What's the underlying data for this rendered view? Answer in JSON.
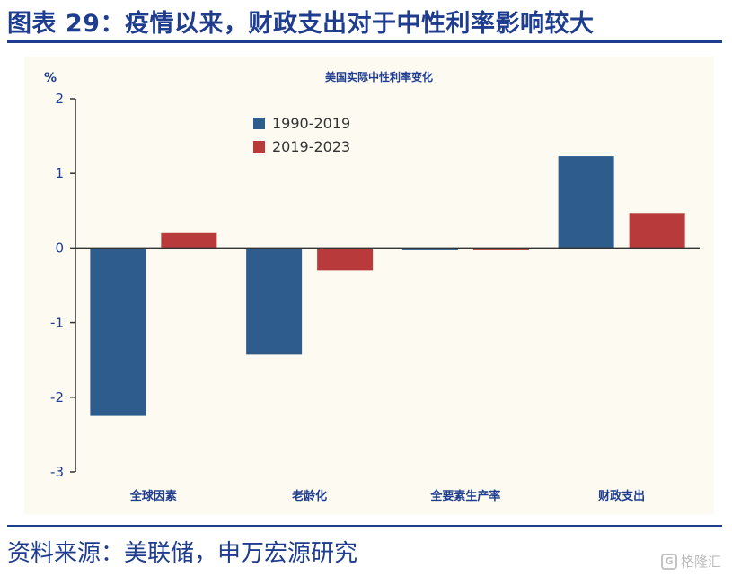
{
  "header": {
    "title": "图表 29：疫情以来，财政支出对于中性利率影响较大"
  },
  "footer": {
    "source": "资料来源：美联储，申万宏源研究"
  },
  "watermark": {
    "text": "格隆汇"
  },
  "colors": {
    "title": "#1f3d8f",
    "series1": "#2e5d8d",
    "series2": "#b93a3a",
    "plot_bg": "#fcfaf1"
  },
  "chart_data": {
    "type": "bar",
    "title": "美国实际中性利率变化",
    "ylabel": "%",
    "xlabel": "",
    "ylim": [
      -3,
      2
    ],
    "yticks": [
      2,
      1,
      0,
      -1,
      -2,
      -3
    ],
    "categories": [
      "全球因素",
      "老龄化",
      "全要素生产率",
      "财政支出"
    ],
    "series": [
      {
        "name": "1990-2019",
        "values": [
          -2.25,
          -1.43,
          -0.03,
          1.23
        ]
      },
      {
        "name": "2019-2023",
        "values": [
          0.2,
          -0.3,
          -0.03,
          0.47
        ]
      }
    ],
    "legend_position": "top-left",
    "grid": false
  }
}
